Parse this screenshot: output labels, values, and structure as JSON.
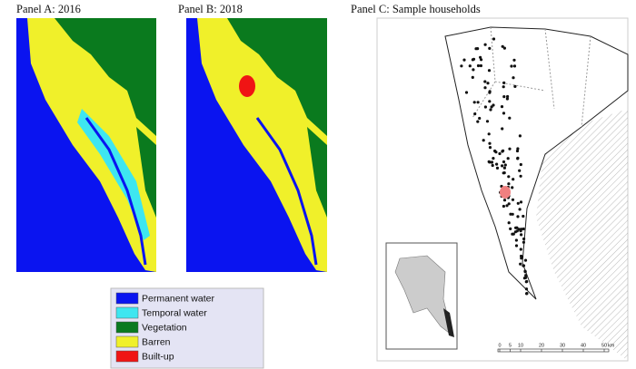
{
  "panels": [
    {
      "title": "Panel A: 2016"
    },
    {
      "title": "Panel B: 2018"
    },
    {
      "title": "Panel C: Sample households"
    }
  ],
  "legend": [
    {
      "label": "Permanent water",
      "color": "#0a14f0"
    },
    {
      "label": "Temporal water",
      "color": "#3ee6f0"
    },
    {
      "label": "Vegetation",
      "color": "#0a7a1e"
    },
    {
      "label": "Barren",
      "color": "#f0f02a"
    },
    {
      "label": "Built-up",
      "color": "#f01414"
    }
  ],
  "scale_bar": {
    "ticks": [
      0,
      5,
      10,
      20,
      30,
      40,
      50
    ],
    "unit": "km"
  }
}
